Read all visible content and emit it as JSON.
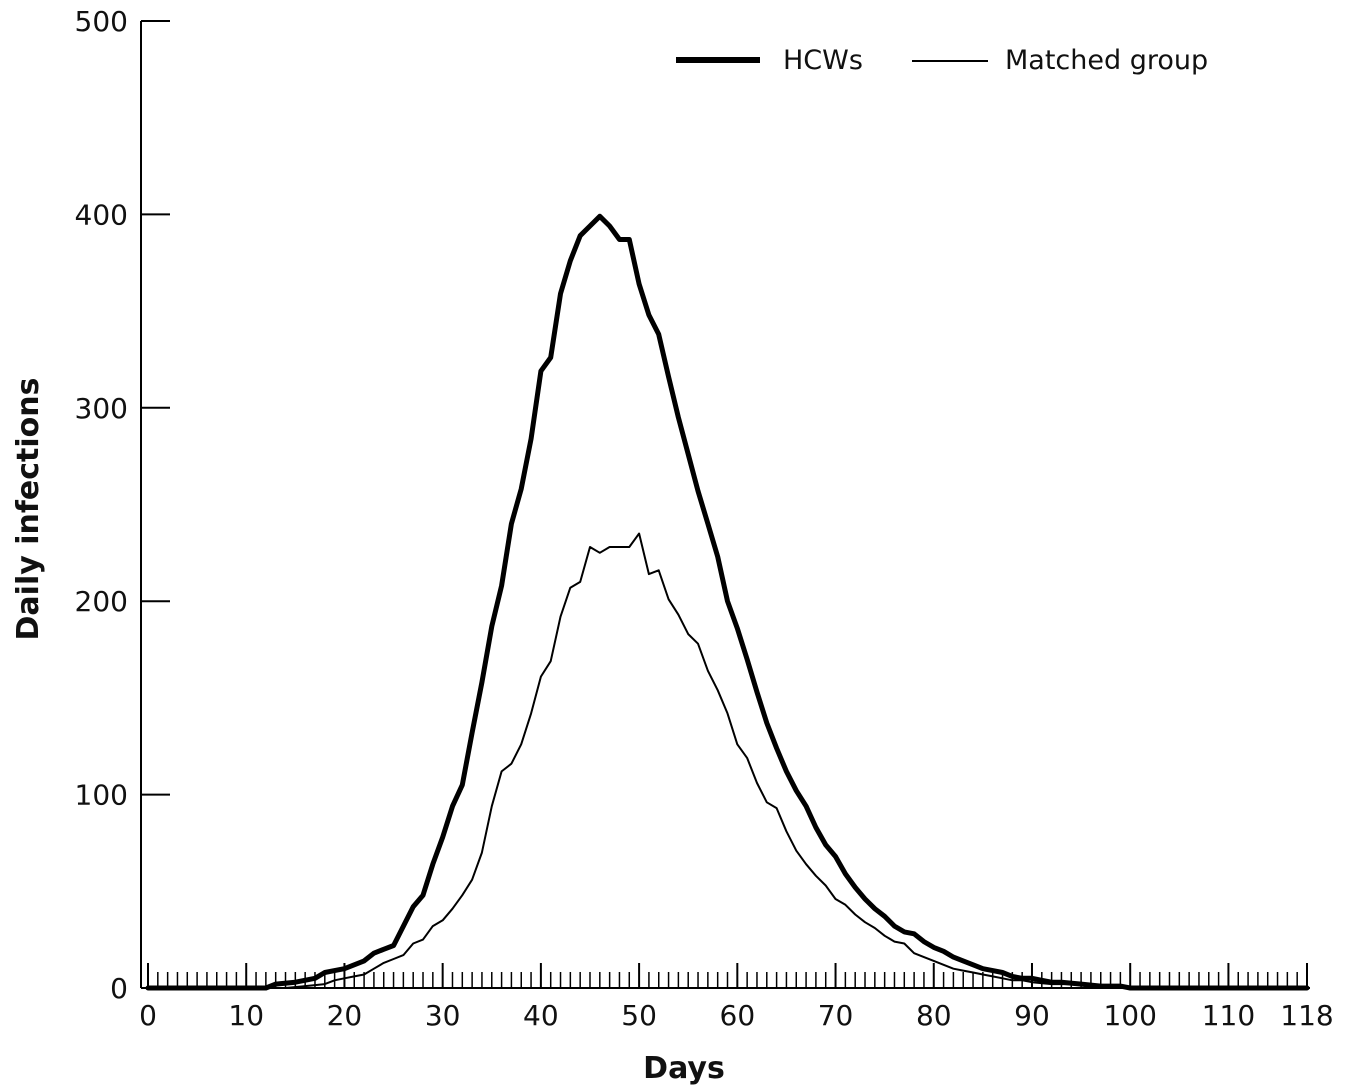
{
  "chart_data": {
    "type": "line",
    "title": "",
    "xlabel": "Days",
    "ylabel": "Daily infections",
    "xlim": [
      0,
      118
    ],
    "ylim": [
      0,
      500
    ],
    "x_tick_labels": [
      "0",
      "10",
      "20",
      "30",
      "40",
      "50",
      "60",
      "70",
      "80",
      "90",
      "100",
      "110",
      "118"
    ],
    "x_tick_values": [
      0,
      10,
      20,
      30,
      40,
      50,
      60,
      70,
      80,
      90,
      100,
      110,
      118
    ],
    "y_tick_labels": [
      "0",
      "100",
      "200",
      "300",
      "400",
      "500"
    ],
    "y_tick_values": [
      0,
      100,
      200,
      300,
      400,
      500
    ],
    "minor_x_tick_step": 1,
    "grid": false,
    "legend_position": "top-right",
    "series": [
      {
        "name": "HCWs",
        "style": "thick",
        "color": "#000000",
        "points": [
          [
            0,
            0
          ],
          [
            12,
            0
          ],
          [
            13,
            2
          ],
          [
            15,
            3
          ],
          [
            17,
            5
          ],
          [
            18,
            8
          ],
          [
            19,
            9
          ],
          [
            20,
            10
          ],
          [
            22,
            14
          ],
          [
            23,
            18
          ],
          [
            24,
            20
          ],
          [
            25,
            22
          ],
          [
            26,
            32
          ],
          [
            27,
            42
          ],
          [
            28,
            48
          ],
          [
            29,
            64
          ],
          [
            30,
            78
          ],
          [
            31,
            94
          ],
          [
            32,
            105
          ],
          [
            33,
            132
          ],
          [
            34,
            158
          ],
          [
            35,
            187
          ],
          [
            36,
            208
          ],
          [
            37,
            240
          ],
          [
            38,
            258
          ],
          [
            39,
            284
          ],
          [
            40,
            319
          ],
          [
            41,
            326
          ],
          [
            42,
            359
          ],
          [
            43,
            376
          ],
          [
            44,
            389
          ],
          [
            45,
            394
          ],
          [
            46,
            399
          ],
          [
            47,
            394
          ],
          [
            48,
            387
          ],
          [
            49,
            387
          ],
          [
            50,
            364
          ],
          [
            51,
            348
          ],
          [
            52,
            338
          ],
          [
            53,
            316
          ],
          [
            54,
            295
          ],
          [
            55,
            276
          ],
          [
            56,
            257
          ],
          [
            57,
            240
          ],
          [
            58,
            223
          ],
          [
            59,
            200
          ],
          [
            60,
            186
          ],
          [
            61,
            170
          ],
          [
            62,
            153
          ],
          [
            63,
            137
          ],
          [
            64,
            124
          ],
          [
            65,
            112
          ],
          [
            66,
            102
          ],
          [
            67,
            94
          ],
          [
            68,
            83
          ],
          [
            69,
            74
          ],
          [
            70,
            68
          ],
          [
            71,
            59
          ],
          [
            72,
            52
          ],
          [
            73,
            46
          ],
          [
            74,
            41
          ],
          [
            75,
            37
          ],
          [
            76,
            32
          ],
          [
            77,
            29
          ],
          [
            78,
            28
          ],
          [
            79,
            24
          ],
          [
            80,
            21
          ],
          [
            81,
            19
          ],
          [
            82,
            16
          ],
          [
            83,
            14
          ],
          [
            84,
            12
          ],
          [
            85,
            10
          ],
          [
            86,
            9
          ],
          [
            87,
            8
          ],
          [
            88,
            6
          ],
          [
            89,
            5
          ],
          [
            90,
            5
          ],
          [
            91,
            4
          ],
          [
            92,
            3
          ],
          [
            93,
            3
          ],
          [
            95,
            2
          ],
          [
            97,
            1
          ],
          [
            99,
            1
          ],
          [
            100,
            0
          ],
          [
            118,
            0
          ]
        ]
      },
      {
        "name": "Matched group",
        "style": "thin",
        "color": "#000000",
        "points": [
          [
            0,
            0
          ],
          [
            14,
            0
          ],
          [
            16,
            1
          ],
          [
            18,
            2
          ],
          [
            19,
            4
          ],
          [
            20,
            5
          ],
          [
            21,
            6
          ],
          [
            22,
            7
          ],
          [
            23,
            10
          ],
          [
            24,
            13
          ],
          [
            25,
            15
          ],
          [
            26,
            17
          ],
          [
            27,
            23
          ],
          [
            28,
            25
          ],
          [
            29,
            32
          ],
          [
            30,
            35
          ],
          [
            31,
            41
          ],
          [
            32,
            48
          ],
          [
            33,
            56
          ],
          [
            34,
            70
          ],
          [
            35,
            94
          ],
          [
            36,
            112
          ],
          [
            37,
            116
          ],
          [
            38,
            126
          ],
          [
            39,
            142
          ],
          [
            40,
            161
          ],
          [
            41,
            169
          ],
          [
            42,
            192
          ],
          [
            43,
            207
          ],
          [
            44,
            210
          ],
          [
            45,
            228
          ],
          [
            46,
            225
          ],
          [
            47,
            228
          ],
          [
            48,
            228
          ],
          [
            49,
            228
          ],
          [
            50,
            235
          ],
          [
            51,
            214
          ],
          [
            52,
            216
          ],
          [
            53,
            201
          ],
          [
            54,
            193
          ],
          [
            55,
            183
          ],
          [
            56,
            178
          ],
          [
            57,
            164
          ],
          [
            58,
            154
          ],
          [
            59,
            142
          ],
          [
            60,
            126
          ],
          [
            61,
            119
          ],
          [
            62,
            106
          ],
          [
            63,
            96
          ],
          [
            64,
            93
          ],
          [
            65,
            81
          ],
          [
            66,
            71
          ],
          [
            67,
            64
          ],
          [
            68,
            58
          ],
          [
            69,
            53
          ],
          [
            70,
            46
          ],
          [
            71,
            43
          ],
          [
            72,
            38
          ],
          [
            73,
            34
          ],
          [
            74,
            31
          ],
          [
            75,
            27
          ],
          [
            76,
            24
          ],
          [
            77,
            23
          ],
          [
            78,
            18
          ],
          [
            79,
            16
          ],
          [
            80,
            14
          ],
          [
            81,
            12
          ],
          [
            82,
            10
          ],
          [
            83,
            9
          ],
          [
            84,
            8
          ],
          [
            85,
            7
          ],
          [
            86,
            6
          ],
          [
            87,
            5
          ],
          [
            88,
            4
          ],
          [
            89,
            4
          ],
          [
            90,
            3
          ],
          [
            92,
            2
          ],
          [
            94,
            2
          ],
          [
            96,
            1
          ],
          [
            98,
            1
          ],
          [
            100,
            0
          ],
          [
            118,
            0
          ]
        ]
      }
    ]
  }
}
